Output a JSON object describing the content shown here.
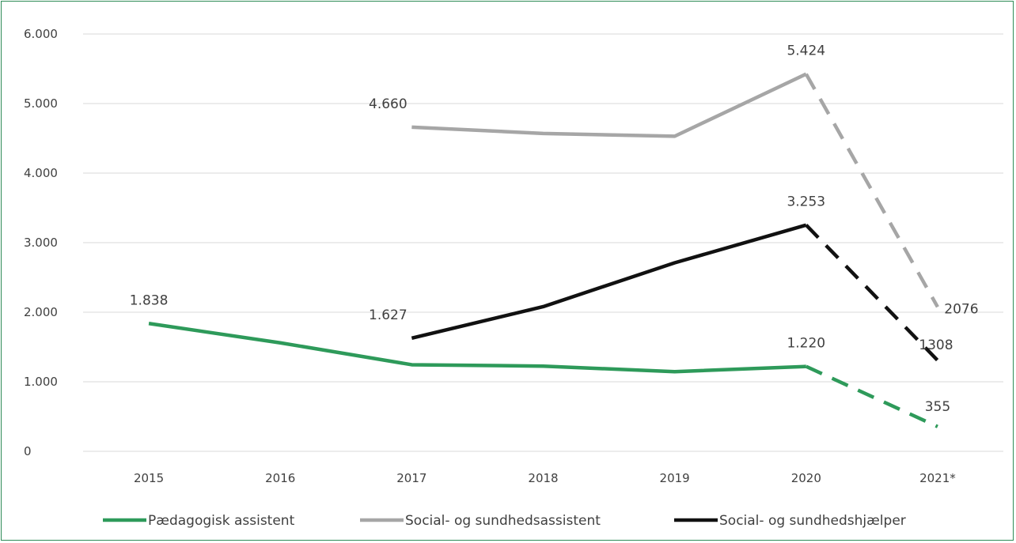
{
  "chart_data": {
    "type": "line",
    "title": "",
    "xlabel": "",
    "ylabel": "",
    "categories": [
      "2015",
      "2016",
      "2017",
      "2018",
      "2019",
      "2020",
      "2021*"
    ],
    "y_tick_labels": [
      "0",
      "1.000",
      "2.000",
      "3.000",
      "4.000",
      "5.000",
      "6.000"
    ],
    "ylim": [
      0,
      6000
    ],
    "grid": "horizontal",
    "legend_position": "bottom",
    "series": [
      {
        "name": "Pædagogisk assistent",
        "color": "#2e9a5a",
        "values": [
          1838,
          1560,
          1245,
          1225,
          1145,
          1220,
          355
        ],
        "dashed_from_index": 5,
        "labels": [
          {
            "index": 0,
            "text": "1.838"
          },
          {
            "index": 5,
            "text": "1.220"
          },
          {
            "index": 6,
            "text": "355"
          }
        ]
      },
      {
        "name": "Social- og sundhedsassistent",
        "color": "#a6a6a6",
        "values": [
          null,
          null,
          4660,
          4570,
          4530,
          5424,
          2076
        ],
        "dashed_from_index": 5,
        "labels": [
          {
            "index": 2,
            "text": "4.660"
          },
          {
            "index": 5,
            "text": "5.424"
          },
          {
            "index": 6,
            "text": "2076"
          }
        ]
      },
      {
        "name": "Social- og sundhedshjælper",
        "color": "#111111",
        "values": [
          null,
          null,
          1627,
          2080,
          2710,
          3253,
          1308
        ],
        "dashed_from_index": 5,
        "labels": [
          {
            "index": 2,
            "text": "1.627"
          },
          {
            "index": 5,
            "text": "3.253"
          },
          {
            "index": 6,
            "text": "1308"
          }
        ]
      }
    ]
  }
}
